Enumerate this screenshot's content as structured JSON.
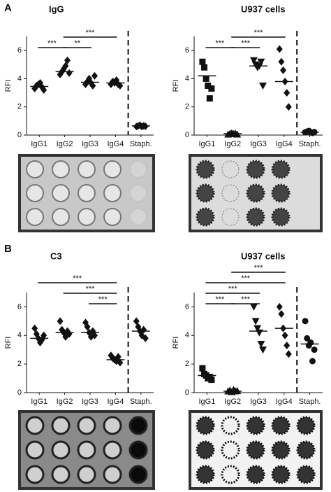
{
  "panel_labels": [
    "A",
    "B"
  ],
  "chart_data": [
    {
      "type": "dot",
      "title": "IgG",
      "ylabel": "RFI",
      "color": "#111111",
      "categories": [
        "IgG1",
        "IgG2",
        "IgG3",
        "IgG4",
        "Staph."
      ],
      "markers": [
        "diamond",
        "diamond",
        "diamond",
        "diamond",
        "diamond"
      ],
      "values": [
        [
          3.3,
          3.5,
          3.6,
          3.7,
          3.4,
          3.2
        ],
        [
          4.3,
          4.5,
          4.7,
          4.9,
          5.3,
          4.4
        ],
        [
          3.6,
          3.8,
          4.0,
          3.7,
          3.5,
          4.2
        ],
        [
          3.6,
          3.8,
          3.7,
          3.9,
          3.6,
          3.5
        ],
        [
          0.6,
          0.65,
          0.7,
          0.6,
          0.65,
          0.62
        ]
      ],
      "medians": [
        3.45,
        4.5,
        3.75,
        3.7,
        0.65
      ],
      "ylim": [
        0,
        7
      ],
      "yticks": [
        0,
        2,
        4,
        6
      ],
      "separator": true,
      "brackets": [
        {
          "span": [
            0,
            1
          ],
          "label": "***"
        },
        {
          "span": [
            1,
            2
          ],
          "label": "**"
        },
        {
          "span": [
            1,
            3
          ],
          "label": "***"
        }
      ]
    },
    {
      "type": "dot",
      "title": "U937 cells",
      "ylabel": "RFI",
      "color": "#111111",
      "categories": [
        "IgG1",
        "IgG2",
        "IgG3",
        "IgG4",
        "Staph."
      ],
      "markers": [
        "square",
        "triangle",
        "triangle-down",
        "diamond",
        "circle"
      ],
      "values": [
        [
          5.2,
          4.8,
          4.0,
          3.5,
          2.6,
          3.3
        ],
        [
          0.05,
          0.1,
          0.15,
          0.08,
          0.12,
          0.05
        ],
        [
          5.3,
          5.0,
          4.8,
          4.9,
          5.2,
          3.5
        ],
        [
          6.1,
          5.2,
          4.6,
          3.8,
          3.0,
          2.0
        ],
        [
          0.2,
          0.25,
          0.3,
          0.2,
          0.15,
          0.22
        ]
      ],
      "medians": [
        4.2,
        0.1,
        4.9,
        3.8,
        0.2
      ],
      "ylim": [
        0,
        7
      ],
      "yticks": [
        0,
        2,
        4,
        6
      ],
      "separator": true,
      "brackets": [
        {
          "span": [
            0,
            1
          ],
          "label": "***"
        },
        {
          "span": [
            1,
            2
          ],
          "label": "***"
        },
        {
          "span": [
            1,
            3
          ],
          "label": "***"
        }
      ]
    },
    {
      "type": "dot",
      "title": "C3",
      "ylabel": "RFI",
      "color": "#111111",
      "categories": [
        "IgG1",
        "IgG2",
        "IgG3",
        "IgG4",
        "Staph."
      ],
      "markers": [
        "diamond",
        "diamond",
        "diamond",
        "diamond",
        "diamond"
      ],
      "values": [
        [
          4.5,
          4.1,
          3.8,
          3.5,
          3.7,
          4.0
        ],
        [
          5.0,
          4.4,
          4.2,
          3.9,
          4.3,
          4.1
        ],
        [
          4.9,
          4.6,
          4.2,
          3.9,
          4.3,
          4.0
        ],
        [
          2.6,
          2.4,
          2.3,
          2.2,
          2.5,
          2.1
        ],
        [
          5.0,
          4.6,
          4.3,
          4.0,
          4.4,
          3.8
        ]
      ],
      "medians": [
        3.8,
        4.2,
        4.2,
        2.3,
        4.3
      ],
      "ylim": [
        0,
        7
      ],
      "yticks": [
        0,
        2,
        4,
        6
      ],
      "separator": true,
      "brackets": [
        {
          "span": [
            2,
            3
          ],
          "label": "***"
        },
        {
          "span": [
            1,
            3
          ],
          "label": "***"
        },
        {
          "span": [
            0,
            3
          ],
          "label": "***"
        }
      ]
    },
    {
      "type": "dot",
      "title": "U937 cells",
      "ylabel": "RFI",
      "color": "#111111",
      "categories": [
        "IgG1",
        "IgG2",
        "IgG3",
        "IgG4",
        "Staph."
      ],
      "markers": [
        "square",
        "triangle",
        "triangle-down",
        "diamond",
        "circle"
      ],
      "values": [
        [
          1.7,
          1.3,
          1.2,
          1.0,
          1.1,
          0.9
        ],
        [
          0.1,
          0.15,
          0.05,
          0.2,
          0.1,
          0.12
        ],
        [
          6.0,
          5.0,
          4.5,
          4.2,
          3.4,
          3.0
        ],
        [
          6.0,
          5.5,
          4.5,
          4.0,
          3.3,
          2.7
        ],
        [
          5.0,
          3.8,
          3.3,
          3.5,
          2.2,
          3.0
        ]
      ],
      "medians": [
        1.2,
        0.1,
        4.3,
        4.5,
        3.4
      ],
      "ylim": [
        0,
        7
      ],
      "yticks": [
        0,
        2,
        4,
        6
      ],
      "separator": true,
      "brackets": [
        {
          "span": [
            0,
            1
          ],
          "label": "***"
        },
        {
          "span": [
            1,
            2
          ],
          "label": "***"
        },
        {
          "span": [
            0,
            2
          ],
          "label": "***"
        },
        {
          "span": [
            0,
            3
          ],
          "label": "***"
        },
        {
          "span": [
            1,
            3
          ],
          "label": "***"
        }
      ]
    }
  ]
}
